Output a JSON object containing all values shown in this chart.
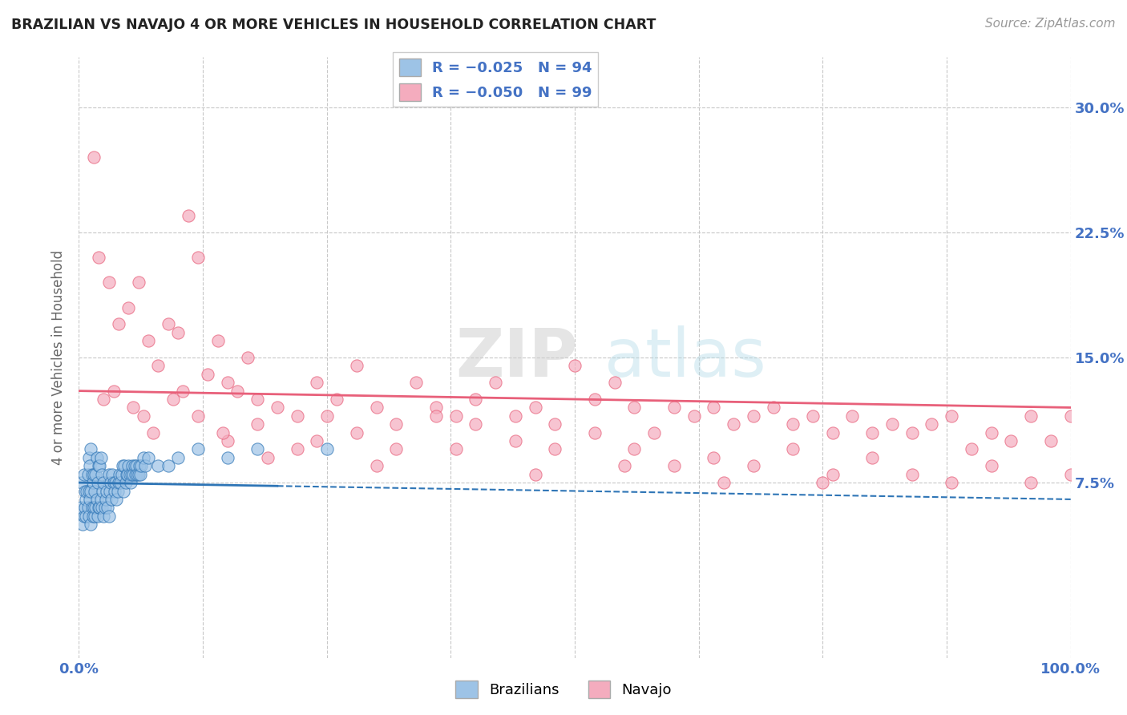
{
  "title": "BRAZILIAN VS NAVAJO 4 OR MORE VEHICLES IN HOUSEHOLD CORRELATION CHART",
  "source": "Source: ZipAtlas.com",
  "ylabel": "4 or more Vehicles in Household",
  "xlim": [
    0,
    100
  ],
  "ylim": [
    -3,
    33
  ],
  "ytick_labels": [
    "7.5%",
    "15.0%",
    "22.5%",
    "30.0%"
  ],
  "ytick_values": [
    7.5,
    15.0,
    22.5,
    30.0
  ],
  "color_brazilian": "#9DC3E6",
  "color_navajo": "#F4ACBE",
  "color_line_brazilian": "#2E75B6",
  "color_line_navajo": "#E8607A",
  "background_color": "#FFFFFF",
  "grid_color": "#C8C8C8",
  "watermark_zip": "ZIP",
  "watermark_atlas": "atlas",
  "brazilian_x": [
    0.2,
    0.3,
    0.4,
    0.5,
    0.5,
    0.6,
    0.6,
    0.7,
    0.7,
    0.8,
    0.9,
    0.9,
    1.0,
    1.0,
    1.0,
    1.1,
    1.1,
    1.2,
    1.2,
    1.2,
    1.3,
    1.3,
    1.4,
    1.4,
    1.5,
    1.5,
    1.6,
    1.6,
    1.7,
    1.7,
    1.8,
    1.8,
    1.9,
    1.9,
    2.0,
    2.0,
    2.1,
    2.1,
    2.2,
    2.2,
    2.3,
    2.3,
    2.4,
    2.5,
    2.5,
    2.6,
    2.7,
    2.8,
    2.9,
    3.0,
    3.0,
    3.1,
    3.2,
    3.3,
    3.4,
    3.5,
    3.6,
    3.7,
    3.8,
    3.9,
    4.0,
    4.1,
    4.2,
    4.3,
    4.4,
    4.5,
    4.6,
    4.7,
    4.8,
    4.9,
    5.0,
    5.1,
    5.2,
    5.3,
    5.4,
    5.5,
    5.6,
    5.7,
    5.8,
    5.9,
    6.0,
    6.1,
    6.2,
    6.3,
    6.5,
    6.7,
    7.0,
    8.0,
    9.0,
    10.0,
    12.0,
    15.0,
    18.0,
    25.0
  ],
  "brazilian_y": [
    6.0,
    7.5,
    5.0,
    5.5,
    8.0,
    6.0,
    7.0,
    5.5,
    6.5,
    7.0,
    6.0,
    8.0,
    5.5,
    7.0,
    9.0,
    6.5,
    8.5,
    5.0,
    7.0,
    9.5,
    6.0,
    8.0,
    5.5,
    7.5,
    6.0,
    8.0,
    5.5,
    7.0,
    6.0,
    8.0,
    6.5,
    9.0,
    5.5,
    7.5,
    6.0,
    8.5,
    6.0,
    8.5,
    6.5,
    9.0,
    6.0,
    8.0,
    7.0,
    5.5,
    7.5,
    6.0,
    6.5,
    7.0,
    6.0,
    5.5,
    8.0,
    7.0,
    7.5,
    6.5,
    8.0,
    7.5,
    7.0,
    7.5,
    6.5,
    7.0,
    7.5,
    8.0,
    7.5,
    8.0,
    8.5,
    7.0,
    8.5,
    7.5,
    8.0,
    8.0,
    8.5,
    8.0,
    7.5,
    8.0,
    8.5,
    8.0,
    8.5,
    8.0,
    8.5,
    8.0,
    8.0,
    8.5,
    8.0,
    8.5,
    9.0,
    8.5,
    9.0,
    8.5,
    8.5,
    9.0,
    9.5,
    9.0,
    9.5,
    9.5
  ],
  "navajo_x": [
    1.5,
    2.0,
    3.0,
    4.0,
    5.0,
    6.0,
    7.0,
    8.0,
    9.0,
    10.0,
    11.0,
    12.0,
    13.0,
    14.0,
    15.0,
    16.0,
    17.0,
    18.0,
    20.0,
    22.0,
    24.0,
    26.0,
    28.0,
    30.0,
    32.0,
    34.0,
    36.0,
    38.0,
    40.0,
    42.0,
    44.0,
    46.0,
    48.0,
    50.0,
    52.0,
    54.0,
    56.0,
    58.0,
    60.0,
    62.0,
    64.0,
    66.0,
    68.0,
    70.0,
    72.0,
    74.0,
    76.0,
    78.0,
    80.0,
    82.0,
    84.0,
    86.0,
    88.0,
    90.0,
    92.0,
    94.0,
    96.0,
    98.0,
    100.0,
    3.5,
    5.5,
    7.5,
    9.5,
    12.0,
    15.0,
    18.0,
    22.0,
    25.0,
    28.0,
    32.0,
    36.0,
    40.0,
    44.0,
    48.0,
    52.0,
    56.0,
    60.0,
    64.0,
    68.0,
    72.0,
    76.0,
    80.0,
    84.0,
    88.0,
    92.0,
    96.0,
    100.0,
    2.5,
    6.5,
    10.5,
    14.5,
    19.0,
    24.0,
    30.0,
    38.0,
    46.0,
    55.0,
    65.0,
    75.0
  ],
  "navajo_y": [
    27.0,
    21.0,
    19.5,
    17.0,
    18.0,
    19.5,
    16.0,
    14.5,
    17.0,
    16.5,
    23.5,
    21.0,
    14.0,
    16.0,
    13.5,
    13.0,
    15.0,
    12.5,
    12.0,
    11.5,
    13.5,
    12.5,
    14.5,
    12.0,
    11.0,
    13.5,
    12.0,
    11.5,
    12.5,
    13.5,
    11.5,
    12.0,
    11.0,
    14.5,
    12.5,
    13.5,
    12.0,
    10.5,
    12.0,
    11.5,
    12.0,
    11.0,
    11.5,
    12.0,
    11.0,
    11.5,
    10.5,
    11.5,
    10.5,
    11.0,
    10.5,
    11.0,
    11.5,
    9.5,
    10.5,
    10.0,
    11.5,
    10.0,
    11.5,
    13.0,
    12.0,
    10.5,
    12.5,
    11.5,
    10.0,
    11.0,
    9.5,
    11.5,
    10.5,
    9.5,
    11.5,
    11.0,
    10.0,
    9.5,
    10.5,
    9.5,
    8.5,
    9.0,
    8.5,
    9.5,
    8.0,
    9.0,
    8.0,
    7.5,
    8.5,
    7.5,
    8.0,
    12.5,
    11.5,
    13.0,
    10.5,
    9.0,
    10.0,
    8.5,
    9.5,
    8.0,
    8.5,
    7.5,
    7.5
  ]
}
